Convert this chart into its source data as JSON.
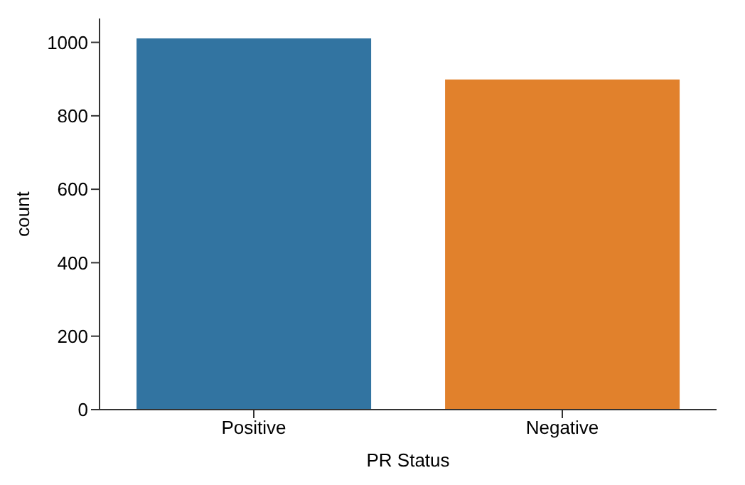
{
  "chart_data": {
    "type": "bar",
    "xlabel": "PR Status",
    "ylabel": "count",
    "categories": [
      "Positive",
      "Negative"
    ],
    "values": [
      1011,
      899
    ],
    "colors": [
      "#3274a1",
      "#e1812c"
    ],
    "ylim": [
      0,
      1065
    ],
    "yticks": [
      0,
      200,
      400,
      600,
      800,
      1000
    ],
    "grid": false
  }
}
